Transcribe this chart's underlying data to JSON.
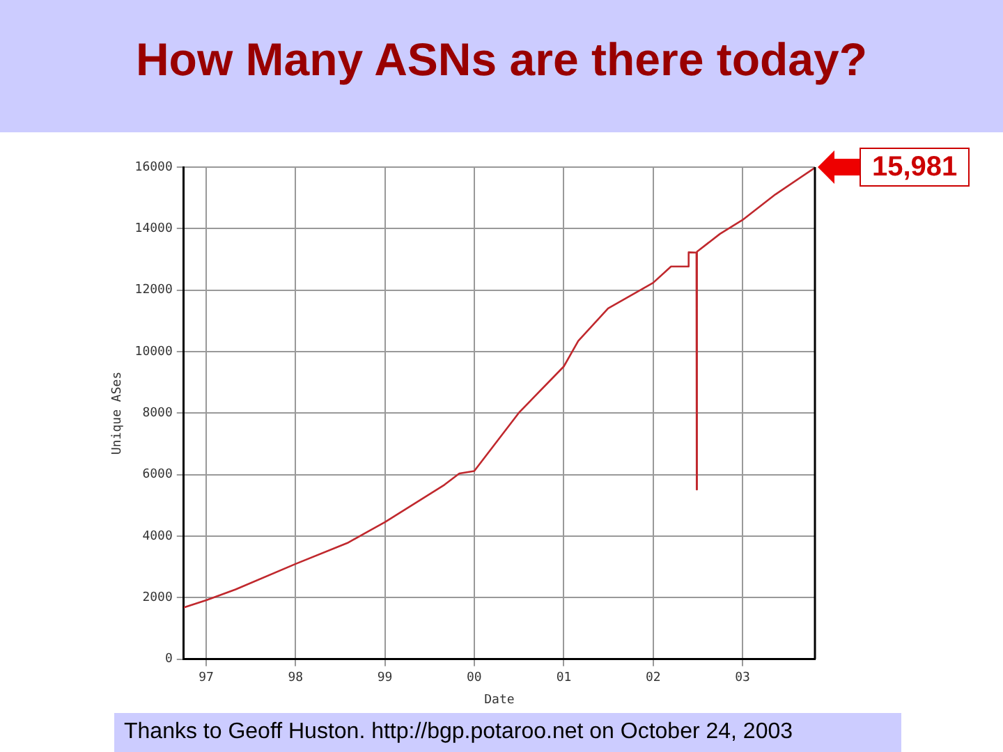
{
  "chart_data": {
    "type": "line",
    "title": "How Many ASNs are there today?",
    "xlabel": "Date",
    "ylabel": "Unique ASes",
    "x": [
      "1996-10-01",
      "1997-01-01",
      "1997-05-01",
      "1998-01-01",
      "1998-08-01",
      "1999-01-01",
      "1999-09-01",
      "1999-11-01",
      "2000-01-01",
      "2000-07-01",
      "2001-01-01",
      "2001-03-01",
      "2001-07-01",
      "2002-01-01",
      "2002-03-15",
      "2002-05-25",
      "2002-05-26",
      "2002-06-27",
      "2002-06-28",
      "2002-06-29",
      "2002-10-01",
      "2003-01-01",
      "2003-05-15",
      "2003-10-24"
    ],
    "series": [
      {
        "color": "#c0282d",
        "values": [
          1680,
          1920,
          2270,
          3100,
          3780,
          4460,
          5670,
          6040,
          6120,
          8010,
          9520,
          10350,
          11410,
          12240,
          12770,
          12770,
          13230,
          13220,
          5520,
          13250,
          13830,
          14280,
          15110,
          15981
        ]
      }
    ],
    "xlim": [
      "1996-10-01",
      "2003-10-24"
    ],
    "xticks": [
      {
        "value": "1997-01-01",
        "label": "97"
      },
      {
        "value": "1998-01-01",
        "label": "98"
      },
      {
        "value": "1999-01-01",
        "label": "99"
      },
      {
        "value": "2000-01-01",
        "label": "00"
      },
      {
        "value": "2001-01-01",
        "label": "01"
      },
      {
        "value": "2002-01-01",
        "label": "02"
      },
      {
        "value": "2003-01-01",
        "label": "03"
      }
    ],
    "ylim": [
      0,
      16000
    ],
    "yticks": [
      0,
      2000,
      4000,
      6000,
      8000,
      10000,
      12000,
      14000,
      16000
    ],
    "grid": true,
    "legend": false,
    "marker": "none",
    "line_style": "solid",
    "annotations": [
      {
        "text": "15,981",
        "x": "2003-10-24",
        "y": 15981
      },
      "Thanks to Geoff Huston. http://bgp.potaroo.net on October 24, 2003"
    ]
  }
}
